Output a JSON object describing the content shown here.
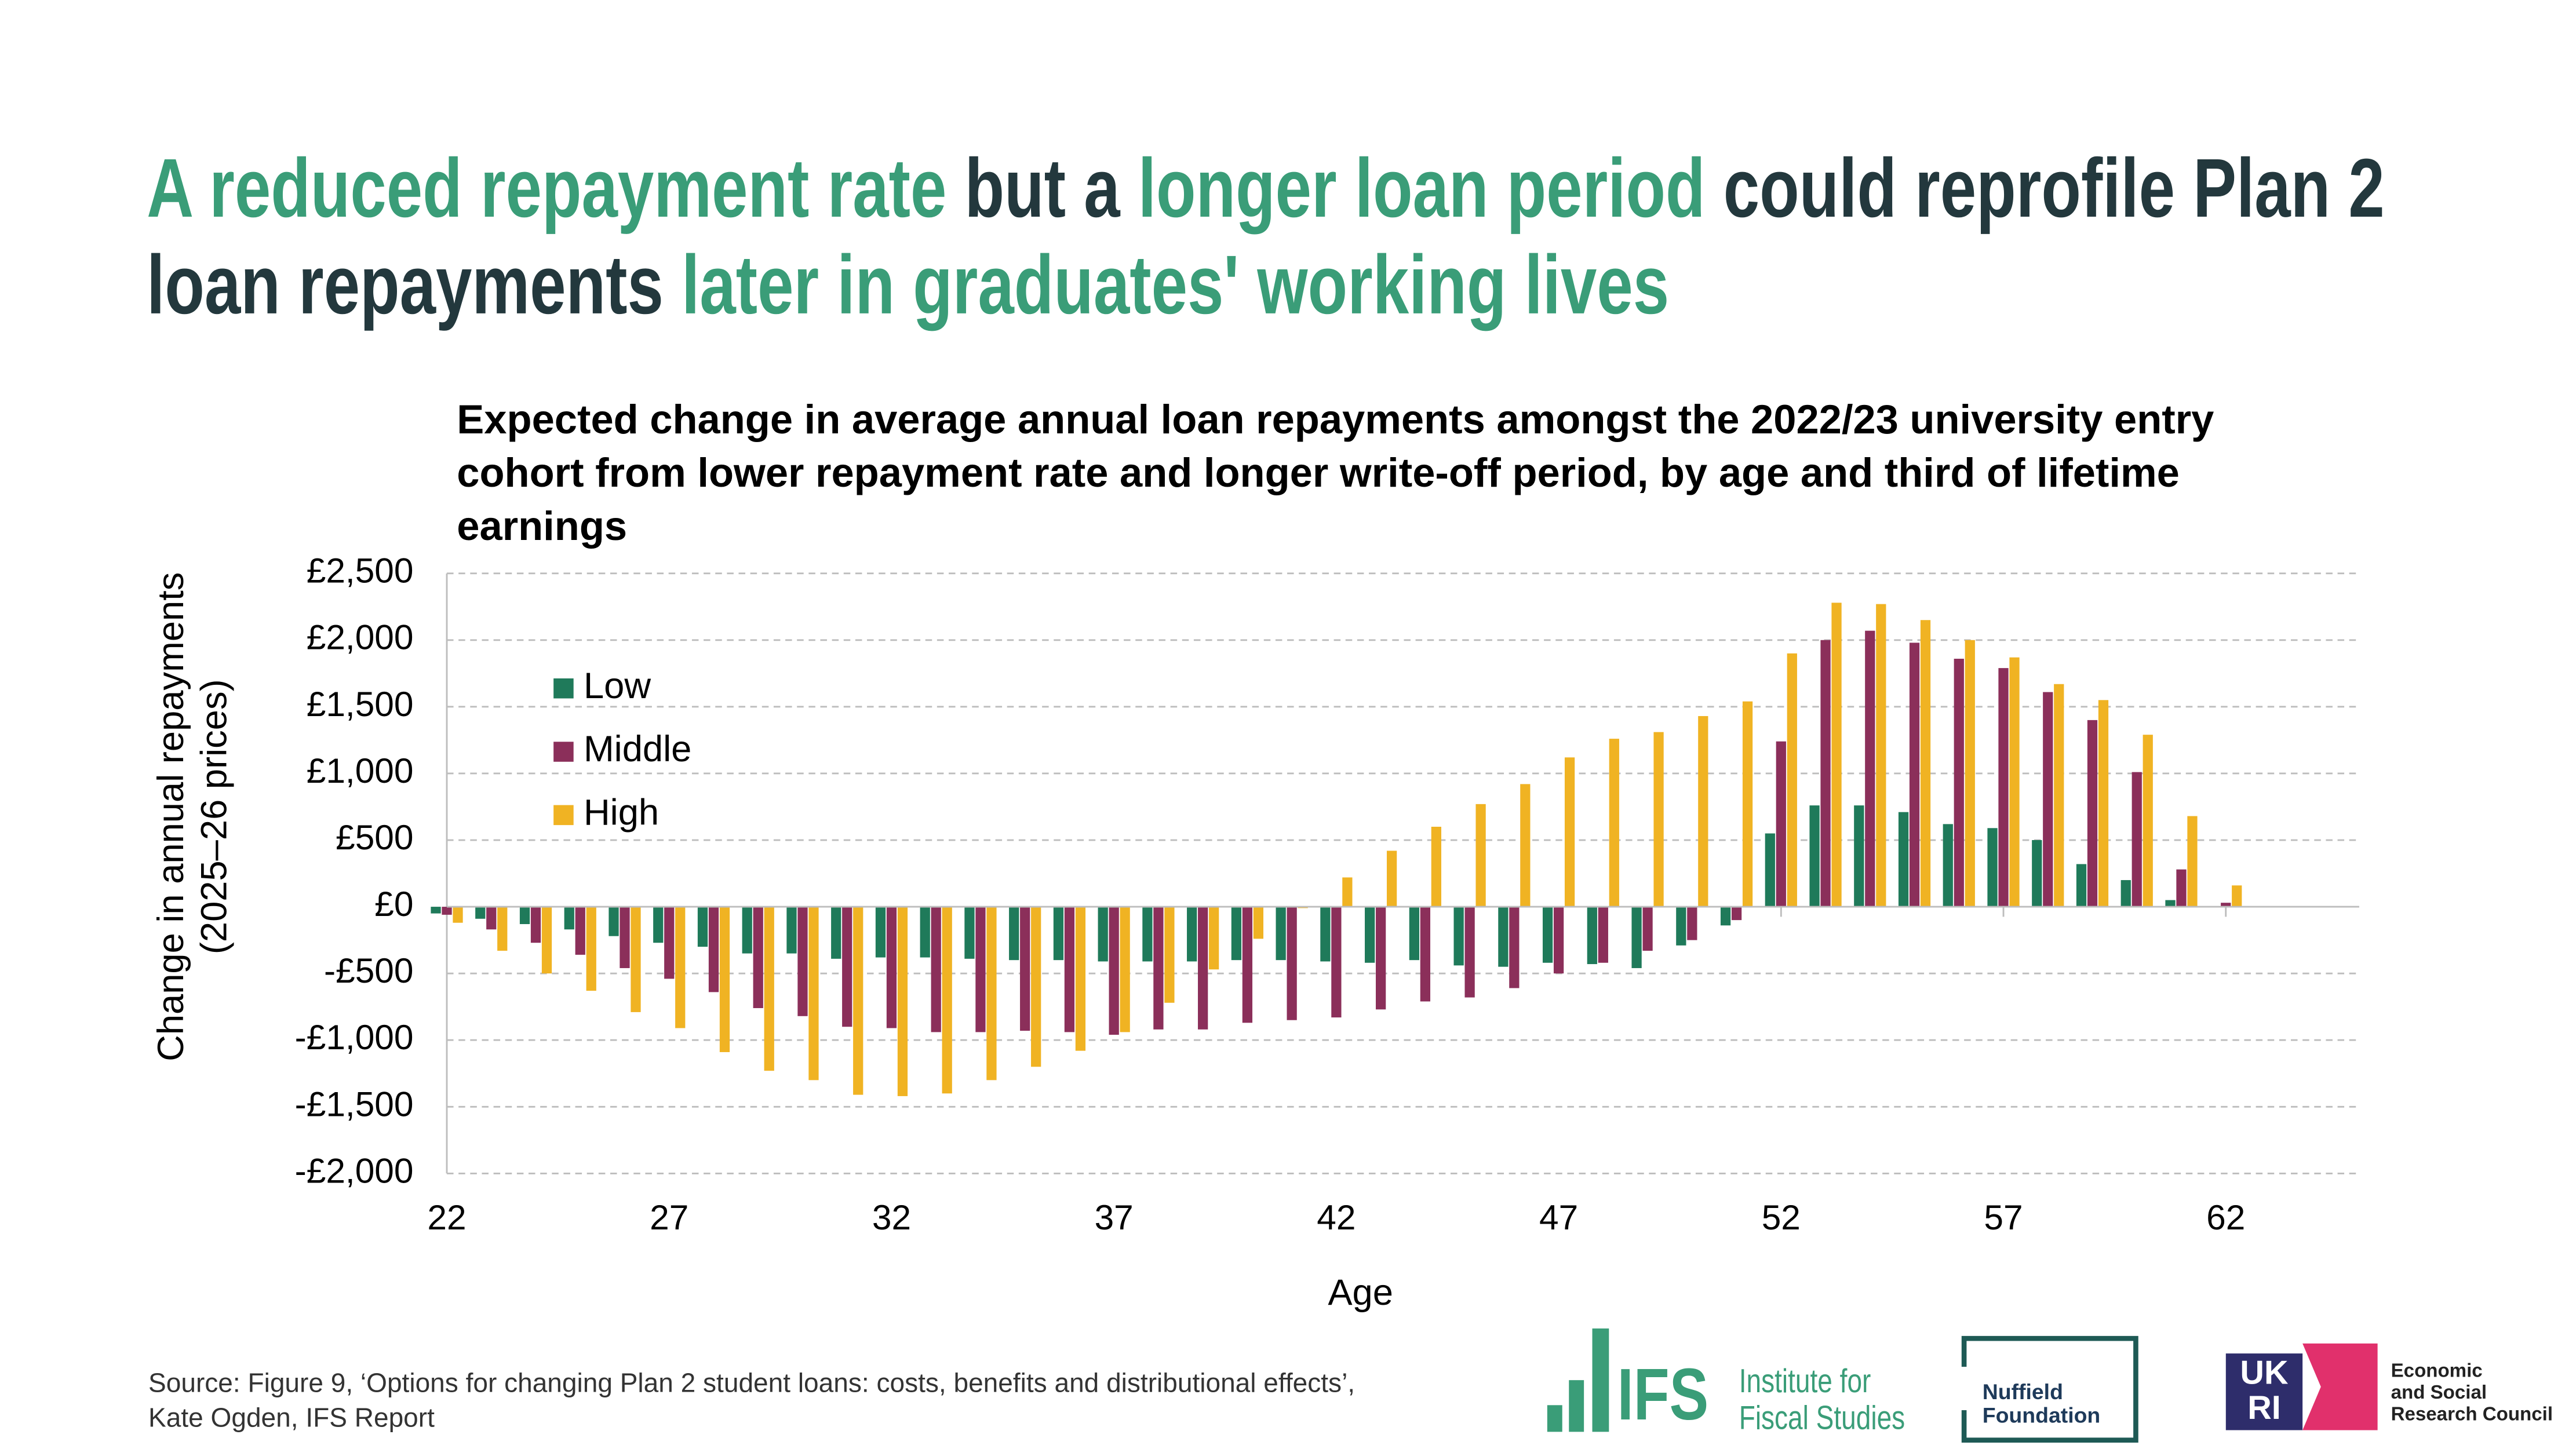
{
  "headline": [
    {
      "text": "A reduced repayment rate",
      "color": "#3a9d78"
    },
    {
      "text": "but a",
      "color": "#23383d"
    },
    {
      "text": "longer loan period",
      "color": "#3a9d78"
    },
    {
      "text": "could reprofile Plan 2 loan repayments",
      "color": "#23383d"
    },
    {
      "text": "later in graduates' working lives",
      "color": "#3a9d78"
    }
  ],
  "chart_data": {
    "type": "bar",
    "title": "Expected change in average annual loan repayments amongst the 2022/23 university entry cohort from lower repayment rate and longer write-off period, by age and third of lifetime earnings",
    "xlabel": "Age",
    "ylabel": [
      "Change in annual repayments",
      "(2025–26 prices)"
    ],
    "x": [
      22,
      23,
      24,
      25,
      26,
      27,
      28,
      29,
      30,
      31,
      32,
      33,
      34,
      35,
      36,
      37,
      38,
      39,
      40,
      41,
      42,
      43,
      44,
      45,
      46,
      47,
      48,
      49,
      50,
      51,
      52,
      53,
      54,
      55,
      56,
      57,
      58,
      59,
      60,
      61,
      62
    ],
    "series": [
      {
        "name": "Low",
        "color": "#1f7a5a",
        "values": [
          -50,
          -90,
          -130,
          -170,
          -220,
          -270,
          -300,
          -350,
          -350,
          -390,
          -380,
          -380,
          -390,
          -400,
          -400,
          -410,
          -410,
          -410,
          -400,
          -400,
          -410,
          -420,
          -400,
          -440,
          -450,
          -420,
          -430,
          -460,
          -290,
          -140,
          550,
          760,
          760,
          710,
          620,
          590,
          500,
          320,
          200,
          50,
          0
        ]
      },
      {
        "name": "Middle",
        "color": "#8b2f5a",
        "values": [
          -60,
          -170,
          -270,
          -360,
          -460,
          -540,
          -640,
          -760,
          -820,
          -900,
          -910,
          -940,
          -940,
          -930,
          -940,
          -960,
          -920,
          -920,
          -870,
          -850,
          -830,
          -770,
          -710,
          -680,
          -610,
          -500,
          -420,
          -330,
          -250,
          -100,
          1240,
          2000,
          2070,
          1980,
          1860,
          1790,
          1610,
          1400,
          1010,
          280,
          30
        ]
      },
      {
        "name": "High",
        "color": "#f0b323",
        "values": [
          -120,
          -330,
          -500,
          -630,
          -790,
          -910,
          -1090,
          -1230,
          -1300,
          -1410,
          -1420,
          -1400,
          -1300,
          -1200,
          -1080,
          -940,
          -720,
          -470,
          -240,
          -10,
          220,
          420,
          600,
          770,
          920,
          1120,
          1260,
          1310,
          1430,
          1540,
          1900,
          2280,
          2270,
          2150,
          2000,
          1870,
          1670,
          1550,
          1290,
          680,
          160
        ]
      }
    ],
    "xlim": [
      22,
      65
    ],
    "xticks": [
      22,
      27,
      32,
      37,
      42,
      47,
      52,
      57,
      62
    ],
    "ylim": [
      -2000,
      2500
    ],
    "yticks": [
      {
        "value": -2000,
        "label": "-£2,000"
      },
      {
        "value": -1500,
        "label": "-£1,500"
      },
      {
        "value": -1000,
        "label": "-£1,000"
      },
      {
        "value": -500,
        "label": "-£500"
      },
      {
        "value": 0,
        "label": "£0"
      },
      {
        "value": 500,
        "label": "£500"
      },
      {
        "value": 1000,
        "label": "£1,000"
      },
      {
        "value": 1500,
        "label": "£1,500"
      },
      {
        "value": 2000,
        "label": "£2,000"
      },
      {
        "value": 2500,
        "label": "£2,500"
      }
    ],
    "grid": true,
    "legend": "upper left"
  },
  "source": "Source: Figure 9, ‘Options for changing Plan 2 student loans: costs, benefits and distributional effects’, Kate Ogden, IFS Report",
  "logos": {
    "ifs": {
      "mark": "IFS",
      "name": [
        "Institute for",
        "Fiscal Studies"
      ]
    },
    "nuffield": [
      "Nuffield",
      "Foundation"
    ],
    "ukri": {
      "mark": [
        "UK",
        "RI"
      ],
      "name": [
        "Economic",
        "and Social",
        "Research Council"
      ]
    }
  }
}
